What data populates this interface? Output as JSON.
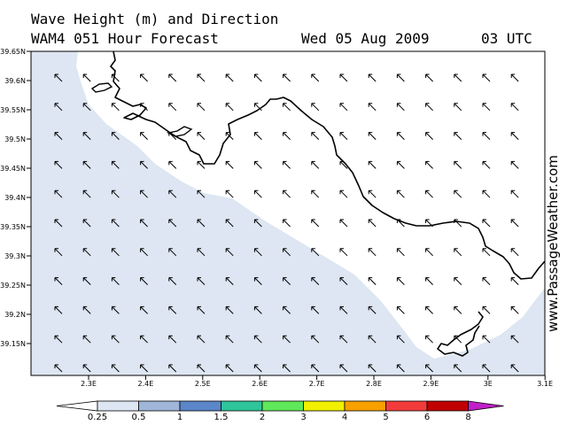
{
  "header": {
    "title": "Wave Height (m) and Direction",
    "model_line": "WAM4 051 Hour Forecast",
    "date": "Wed 05 Aug 2009",
    "time": "03 UTC"
  },
  "branding": {
    "text": "www.PassageWeather.com"
  },
  "map": {
    "latitude_labels": [
      "39.65N",
      "39.6N",
      "39.55N",
      "39.5N",
      "39.45N",
      "39.4N",
      "39.35N",
      "39.3N",
      "39.25N",
      "39.2N",
      "39.15N"
    ],
    "longitude_labels": [
      "2.3E",
      "2.4E",
      "2.5E",
      "2.6E",
      "2.7E",
      "2.8E",
      "2.9E",
      "3E",
      "3.1E"
    ],
    "land_color": "#ffffff",
    "sea_low_wave_color": "#dde6f2",
    "coastline_color": "#000000",
    "arrow_direction": "north-west",
    "arrow_color": "#000000"
  },
  "legend": {
    "labels": [
      "0.25",
      "0.5",
      "1",
      "1.5",
      "2",
      "3",
      "4",
      "5",
      "6",
      "8"
    ],
    "colors": [
      "#dde6f2",
      "#9fb6d9",
      "#5b86c9",
      "#2fc49a",
      "#5fe85a",
      "#f0f000",
      "#f8a000",
      "#f23c3c",
      "#c00000",
      "#c020c8"
    ]
  }
}
